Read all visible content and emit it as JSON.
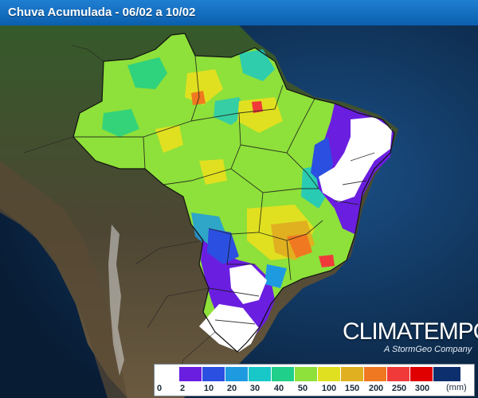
{
  "title": "Chuva Acumulada - 06/02 a 10/02",
  "logo": {
    "main": "CLIMATEMPO",
    "sub": "A StormGeo Company"
  },
  "legend": {
    "unit": "(mm)",
    "labels": [
      "0",
      "2",
      "10",
      "20",
      "30",
      "40",
      "50",
      "100",
      "150",
      "200",
      "250",
      "300"
    ],
    "colors": [
      "#ffffff",
      "#6a1ee0",
      "#2b4fe0",
      "#1e9be0",
      "#18c8c8",
      "#1fcf8a",
      "#8ee03a",
      "#e0e020",
      "#e0b020",
      "#f07820",
      "#f03a3a",
      "#e00000",
      "#0e2f6e"
    ]
  },
  "colors": {
    "ocean": "#0d2f58",
    "land": "#4a4030",
    "title_bar": "#1470c8"
  }
}
